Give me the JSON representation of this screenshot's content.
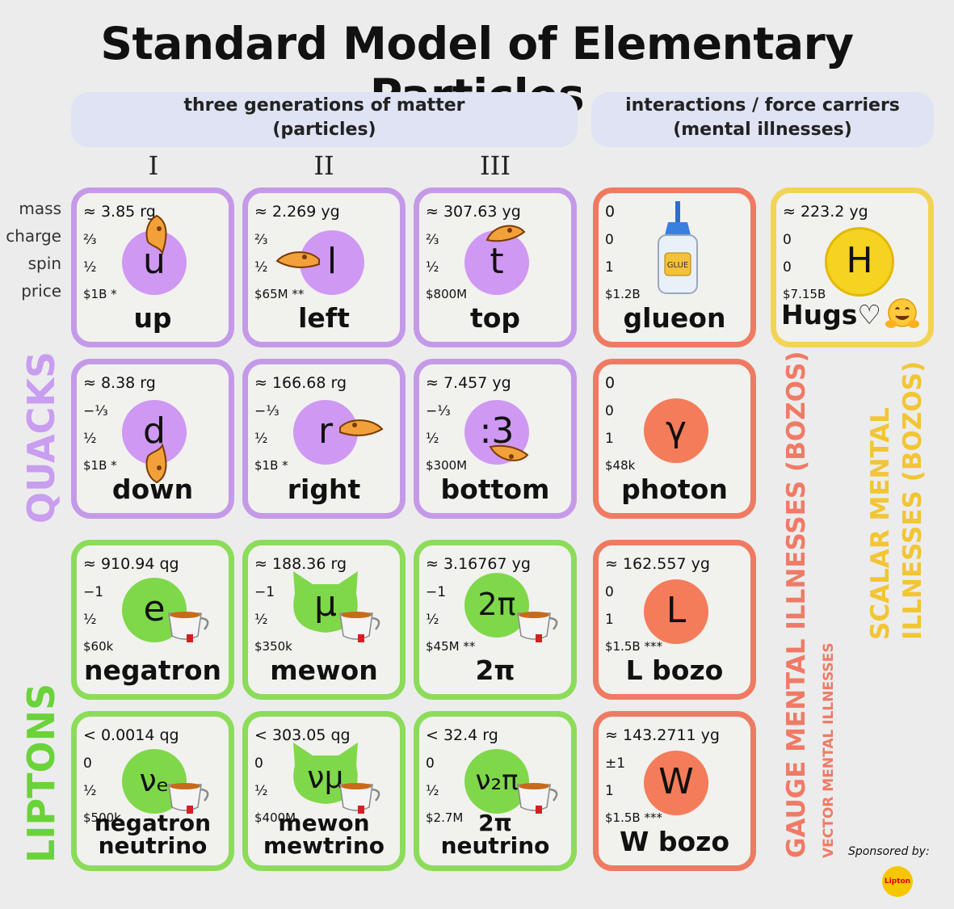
{
  "title": "Standard Model of Elementary Particles",
  "bands": {
    "matter_line1": "three generations of matter",
    "matter_line2": "(particles)",
    "forces_line1": "interactions / force carriers",
    "forces_line2": "(mental illnesses)"
  },
  "generations": [
    "I",
    "II",
    "III"
  ],
  "row_labels": [
    "mass",
    "charge",
    "spin",
    "price"
  ],
  "side_labels": {
    "quacks": "QUACKS",
    "liptons": "LIPTONS",
    "gauge": "GAUGE MENTAL ILLNESSES (BOZOS)",
    "vector": "VECTOR MENTAL ILLNESSES",
    "scalar_line1": "SCALAR MENTAL",
    "scalar_line2": "ILLNESSES (BOZOS)"
  },
  "particles": {
    "up": {
      "mass": "≈ 3.85 rg",
      "charge": "⅔",
      "spin": "½",
      "price": "$1B *",
      "symbol": "u",
      "name": "up"
    },
    "left": {
      "mass": "≈ 2.269 yg",
      "charge": "⅔",
      "spin": "½",
      "price": "$65M **",
      "symbol": "l",
      "name": "left"
    },
    "top": {
      "mass": "≈ 307.63 yg",
      "charge": "⅔",
      "spin": "½",
      "price": "$800M",
      "symbol": "t",
      "name": "top"
    },
    "glueon": {
      "mass": "0",
      "charge": "0",
      "spin": "1",
      "price": "$1.2B",
      "name": "glueon",
      "bottle_label": "GLUE"
    },
    "hugs": {
      "mass": "≈ 223.2 yg",
      "charge": "0",
      "spin": "0",
      "price": "$7.15B",
      "symbol": "H",
      "name": "Hugs♡"
    },
    "down": {
      "mass": "≈ 8.38 rg",
      "charge": "−⅓",
      "spin": "½",
      "price": "$1B *",
      "symbol": "d",
      "name": "down"
    },
    "right": {
      "mass": "≈ 166.68 rg",
      "charge": "−⅓",
      "spin": "½",
      "price": "$1B *",
      "symbol": "r",
      "name": "right"
    },
    "bottom": {
      "mass": "≈ 7.457 yg",
      "charge": "−⅓",
      "spin": "½",
      "price": "$300M",
      "symbol": ":3",
      "name": "bottom"
    },
    "photon": {
      "mass": "0",
      "charge": "0",
      "spin": "1",
      "price": "$48k",
      "symbol": "γ",
      "name": "photon"
    },
    "negatron": {
      "mass": "≈ 910.94 qg",
      "charge": "−1",
      "spin": "½",
      "price": "$60k",
      "symbol": "e",
      "name": "negatron"
    },
    "mewon": {
      "mass": "≈ 188.36 rg",
      "charge": "−1",
      "spin": "½",
      "price": "$350k",
      "symbol": "μ",
      "name": "mewon"
    },
    "twopi": {
      "mass": "≈ 3.16767 yg",
      "charge": "−1",
      "spin": "½",
      "price": "$45M **",
      "symbol": "2π",
      "name": "2π"
    },
    "lbozo": {
      "mass": "≈ 162.557 yg",
      "charge": "0",
      "spin": "1",
      "price": "$1.5B ***",
      "symbol": "L",
      "name": "L bozo"
    },
    "negatron_neutrino": {
      "mass": "< 0.0014 qg",
      "charge": "0",
      "spin": "½",
      "price": "$500k",
      "symbol": "νₑ",
      "name1": "negatron",
      "name2": "neutrino"
    },
    "mewon_mewtrino": {
      "mass": "< 303.05 qg",
      "charge": "0",
      "spin": "½",
      "price": "$400M",
      "symbol": "νμ",
      "name1": "mewon",
      "name2": "mewtrino"
    },
    "twopi_neutrino": {
      "mass": "< 32.4 rg",
      "charge": "0",
      "spin": "½",
      "price": "$2.7M",
      "symbol": "ν₂π",
      "name1": "2π",
      "name2": "neutrino"
    },
    "wbozo": {
      "mass": "≈ 143.2711 yg",
      "charge": "±1",
      "spin": "1",
      "price": "$1.5B ***",
      "symbol": "W",
      "name": "W bozo"
    }
  },
  "sponsor": {
    "label": "Sponsored by:",
    "logo_text": "Lipton"
  },
  "colors": {
    "quark": "#c49ae8",
    "lepton": "#8cdc5a",
    "gauge": "#ef7a62",
    "scalar": "#f2d455"
  }
}
